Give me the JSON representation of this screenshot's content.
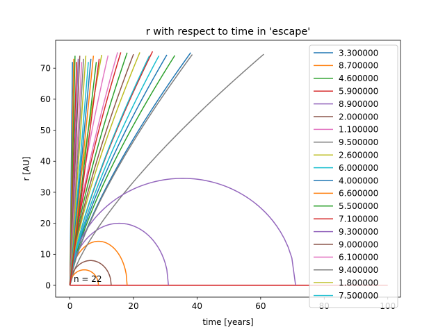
{
  "chart_data": {
    "type": "line",
    "title": "r with respect to time in 'escape'",
    "xlabel": "time [years]",
    "ylabel": "r [AU]",
    "xlim": [
      -4.5,
      104
    ],
    "ylim": [
      -3.8,
      79
    ],
    "xticks": [
      0,
      20,
      40,
      60,
      80,
      100
    ],
    "yticks": [
      0,
      10,
      20,
      30,
      40,
      50,
      60,
      70
    ],
    "annotation": "n = 22",
    "legend_position": "right",
    "series": [
      {
        "name": "3.300000",
        "color": "#1f77b4",
        "kind": "escape",
        "t_end": 30.5
      },
      {
        "name": "8.700000",
        "color": "#ff7f0e",
        "kind": "bound",
        "t_fall": 18.0,
        "peak": 14.2,
        "t_peak": 9.0
      },
      {
        "name": "4.600000",
        "color": "#2ca02c",
        "kind": "escape",
        "t_end": 33.0
      },
      {
        "name": "5.900000",
        "color": "#d62728",
        "kind": "escape",
        "t_end": 26.0
      },
      {
        "name": "8.900000",
        "color": "#9467bd",
        "kind": "bound",
        "t_fall": 31.0,
        "peak": 20.0,
        "t_peak": 15.5
      },
      {
        "name": "2.000000",
        "color": "#8c564b",
        "kind": "escape",
        "t_end": 20.0
      },
      {
        "name": "1.100000",
        "color": "#e377c2",
        "kind": "escape",
        "t_end": 15.0
      },
      {
        "name": "9.500000",
        "color": "#7f7f7f",
        "kind": "escape",
        "t_end": 61.0
      },
      {
        "name": "2.600000",
        "color": "#bcbd22",
        "kind": "escape",
        "t_end": 22.0
      },
      {
        "name": "6.000000",
        "color": "#17becf",
        "kind": "escape",
        "t_end": 25.0
      },
      {
        "name": "4.000000",
        "color": "#1f77b4",
        "kind": "escape",
        "t_end": 38.0
      },
      {
        "name": "6.600000",
        "color": "#ff7f0e",
        "kind": "bound",
        "t_fall": 9.0,
        "peak": 5.0,
        "t_peak": 4.5
      },
      {
        "name": "5.500000",
        "color": "#2ca02c",
        "kind": "escape",
        "t_end": 18.0
      },
      {
        "name": "7.100000",
        "color": "#d62728",
        "kind": "escape",
        "t_end": 16.0
      },
      {
        "name": "9.300000",
        "color": "#9467bd",
        "kind": "bound",
        "t_fall": 71.0,
        "peak": 34.5,
        "t_peak": 36.0
      },
      {
        "name": "9.000000",
        "color": "#8c564b",
        "kind": "bound",
        "t_fall": 13.0,
        "peak": 8.0,
        "t_peak": 6.5
      },
      {
        "name": "6.100000",
        "color": "#e377c2",
        "kind": "escape",
        "t_end": 12.0
      },
      {
        "name": "9.400000",
        "color": "#7f7f7f",
        "kind": "escape",
        "t_end": 38.5
      },
      {
        "name": "1.800000",
        "color": "#bcbd22",
        "kind": "escape",
        "t_end": 10.0
      },
      {
        "name": "7.500000",
        "color": "#17becf",
        "kind": "escape",
        "t_end": 28.0
      }
    ]
  }
}
